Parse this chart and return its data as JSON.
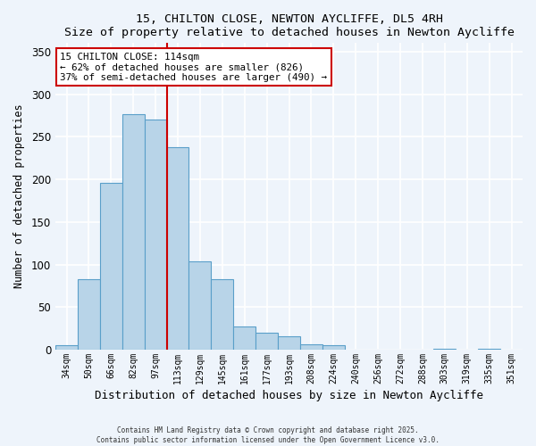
{
  "title": "15, CHILTON CLOSE, NEWTON AYCLIFFE, DL5 4RH",
  "subtitle": "Size of property relative to detached houses in Newton Aycliffe",
  "xlabel": "Distribution of detached houses by size in Newton Aycliffe",
  "ylabel": "Number of detached properties",
  "bar_labels": [
    "34sqm",
    "50sqm",
    "66sqm",
    "82sqm",
    "97sqm",
    "113sqm",
    "129sqm",
    "145sqm",
    "161sqm",
    "177sqm",
    "193sqm",
    "208sqm",
    "224sqm",
    "240sqm",
    "256sqm",
    "272sqm",
    "288sqm",
    "303sqm",
    "319sqm",
    "335sqm",
    "351sqm"
  ],
  "bar_values": [
    5,
    83,
    196,
    277,
    270,
    238,
    104,
    83,
    27,
    20,
    16,
    6,
    5,
    0,
    0,
    0,
    0,
    1,
    0,
    1,
    0
  ],
  "bar_color": "#b8d4e8",
  "bar_edge_color": "#5a9fc9",
  "ylim": [
    0,
    360
  ],
  "yticks": [
    0,
    50,
    100,
    150,
    200,
    250,
    300,
    350
  ],
  "vline_color": "#cc0000",
  "vline_bar_index": 5,
  "annotation_title": "15 CHILTON CLOSE: 114sqm",
  "annotation_line1": "← 62% of detached houses are smaller (826)",
  "annotation_line2": "37% of semi-detached houses are larger (490) →",
  "annotation_box_color": "#ffffff",
  "annotation_box_edgecolor": "#cc0000",
  "footer_line1": "Contains HM Land Registry data © Crown copyright and database right 2025.",
  "footer_line2": "Contains public sector information licensed under the Open Government Licence v3.0.",
  "background_color": "#eef4fb",
  "grid_color": "#ffffff"
}
